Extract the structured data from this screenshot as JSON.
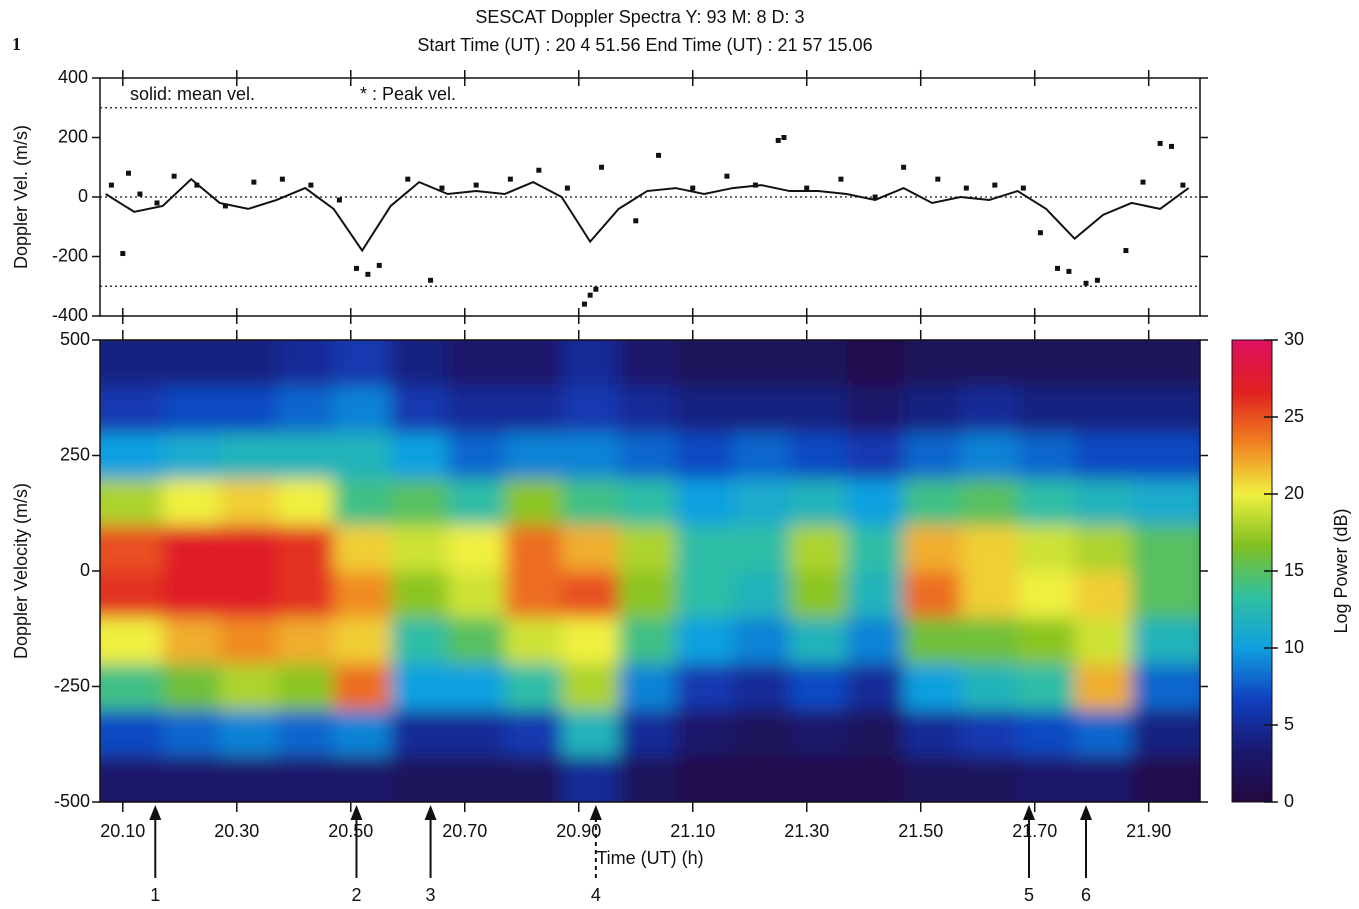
{
  "figure_label": "1",
  "chart_data": [
    {
      "type": "line",
      "title": "SESCAT Doppler Spectra  Y: 93   M: 8   D: 3",
      "subtitle": "Start Time (UT) : 20 4   51.56  End Time (UT) : 21 57   15.06",
      "ylabel": "Doppler Vel. (m/s)",
      "xlim": [
        20.06,
        21.99
      ],
      "xticks": [
        20.1,
        20.3,
        20.5,
        20.7,
        20.9,
        21.1,
        21.3,
        21.5,
        21.7,
        21.9
      ],
      "ylim": [
        -400,
        400
      ],
      "yticks": [
        -400,
        -200,
        0,
        200,
        400
      ],
      "reference_lines": [
        300,
        0,
        -300
      ],
      "series": [
        {
          "name": "solid: mean vel.",
          "style": "line",
          "color": "#111111",
          "x": [
            20.07,
            20.12,
            20.17,
            20.22,
            20.27,
            20.32,
            20.37,
            20.42,
            20.47,
            20.52,
            20.57,
            20.62,
            20.67,
            20.72,
            20.77,
            20.82,
            20.87,
            20.92,
            20.97,
            21.02,
            21.07,
            21.12,
            21.17,
            21.22,
            21.27,
            21.32,
            21.37,
            21.42,
            21.47,
            21.52,
            21.57,
            21.62,
            21.67,
            21.72,
            21.77,
            21.82,
            21.87,
            21.92,
            21.97
          ],
          "values": [
            10,
            -50,
            -30,
            60,
            -20,
            -40,
            -10,
            30,
            -40,
            -180,
            -30,
            50,
            10,
            20,
            10,
            50,
            0,
            -150,
            -40,
            20,
            30,
            10,
            30,
            40,
            20,
            20,
            10,
            -10,
            30,
            -20,
            0,
            -10,
            20,
            -40,
            -140,
            -60,
            -20,
            -40,
            30
          ]
        },
        {
          "name": "* : Peak vel.",
          "style": "points",
          "color": "#111111",
          "x": [
            20.08,
            20.1,
            20.11,
            20.13,
            20.16,
            20.19,
            20.23,
            20.28,
            20.33,
            20.38,
            20.43,
            20.48,
            20.51,
            20.53,
            20.55,
            20.6,
            20.64,
            20.66,
            20.72,
            20.78,
            20.83,
            20.88,
            20.91,
            20.92,
            20.93,
            20.94,
            21.0,
            21.04,
            21.1,
            21.16,
            21.21,
            21.25,
            21.26,
            21.3,
            21.36,
            21.42,
            21.47,
            21.53,
            21.58,
            21.63,
            21.68,
            21.71,
            21.74,
            21.76,
            21.79,
            21.81,
            21.86,
            21.89,
            21.92,
            21.94,
            21.96
          ],
          "values": [
            40,
            -190,
            80,
            10,
            -20,
            70,
            40,
            -30,
            50,
            60,
            40,
            -10,
            -240,
            -260,
            -230,
            60,
            -280,
            30,
            40,
            60,
            90,
            30,
            -360,
            -330,
            -310,
            100,
            -80,
            140,
            30,
            70,
            40,
            190,
            200,
            30,
            60,
            0,
            100,
            60,
            30,
            40,
            30,
            -120,
            -240,
            -250,
            -290,
            -280,
            -180,
            50,
            180,
            170,
            40
          ]
        }
      ]
    },
    {
      "type": "heatmap",
      "xlabel": "Time (UT)  (h)",
      "ylabel": "Doppler Velocity (m/s)",
      "xlim": [
        20.06,
        21.99
      ],
      "xticks": [
        {
          "value": 20.1,
          "label": "20.10"
        },
        {
          "value": 20.3,
          "label": "20.30"
        },
        {
          "value": 20.5,
          "label": "20.50"
        },
        {
          "value": 20.7,
          "label": "20.70"
        },
        {
          "value": 20.9,
          "label": "20.90"
        },
        {
          "value": 21.1,
          "label": "21.10"
        },
        {
          "value": 21.3,
          "label": "21.30"
        },
        {
          "value": 21.5,
          "label": "21.50"
        },
        {
          "value": 21.7,
          "label": "21.70"
        },
        {
          "value": 21.9,
          "label": "21.90"
        }
      ],
      "ylim": [
        -500,
        500
      ],
      "yticks": [
        -500,
        -250,
        0,
        250,
        500
      ],
      "xbins": [
        20.07,
        20.17,
        20.27,
        20.37,
        20.47,
        20.57,
        20.67,
        20.77,
        20.87,
        20.97,
        21.07,
        21.17,
        21.27,
        21.37,
        21.47,
        21.57,
        21.67,
        21.77,
        21.87,
        21.97
      ],
      "ybins": [
        -500,
        -400,
        -300,
        -200,
        -100,
        0,
        100,
        200,
        300,
        400,
        500
      ],
      "z": [
        [
          3,
          3,
          3,
          3,
          3,
          2,
          2,
          2,
          5,
          2,
          1,
          1,
          1,
          1,
          2,
          2,
          3,
          3,
          1
        ],
        [
          7,
          8,
          9,
          8,
          9,
          5,
          5,
          6,
          12,
          5,
          3,
          2,
          3,
          2,
          5,
          6,
          7,
          8,
          4
        ],
        [
          14,
          16,
          18,
          17,
          24,
          10,
          10,
          13,
          18,
          9,
          6,
          5,
          7,
          5,
          10,
          12,
          13,
          22,
          8
        ],
        [
          20,
          22,
          23,
          22,
          21,
          13,
          15,
          19,
          20,
          14,
          10,
          9,
          12,
          9,
          16,
          16,
          17,
          19,
          12
        ],
        [
          26,
          27,
          27,
          26,
          23,
          17,
          19,
          24,
          25,
          17,
          13,
          12,
          17,
          12,
          24,
          21,
          20,
          21,
          15
        ],
        [
          25,
          27,
          27,
          26,
          21,
          19,
          20,
          24,
          22,
          18,
          13,
          13,
          18,
          13,
          22,
          21,
          19,
          18,
          15
        ],
        [
          18,
          20,
          21,
          20,
          14,
          15,
          13,
          17,
          14,
          13,
          10,
          11,
          12,
          10,
          14,
          15,
          13,
          12,
          11
        ],
        [
          10,
          11,
          12,
          12,
          12,
          10,
          8,
          9,
          9,
          8,
          7,
          8,
          7,
          6,
          8,
          9,
          8,
          7,
          7
        ],
        [
          6,
          7,
          7,
          8,
          9,
          6,
          5,
          5,
          6,
          5,
          4,
          4,
          4,
          3,
          4,
          5,
          4,
          4,
          4
        ],
        [
          4,
          4,
          4,
          5,
          6,
          4,
          3,
          3,
          5,
          3,
          2,
          2,
          2,
          1,
          2,
          2,
          2,
          2,
          2
        ]
      ],
      "zlim": [
        0,
        30
      ],
      "zticks": [
        0,
        5,
        10,
        15,
        20,
        25,
        30
      ],
      "colorbar_label": "Log Power (dB)",
      "colorscale": [
        "#24083e",
        "#1a1870",
        "#1040c0",
        "#10a0e0",
        "#30c0a0",
        "#80c020",
        "#f0f040",
        "#f08020",
        "#e02020",
        "#e01060"
      ],
      "annotations": [
        {
          "x": 20.157,
          "label": "1",
          "style": "solid"
        },
        {
          "x": 20.51,
          "label": "2",
          "style": "solid"
        },
        {
          "x": 20.64,
          "label": "3",
          "style": "solid"
        },
        {
          "x": 20.93,
          "label": "4",
          "style": "dashed"
        },
        {
          "x": 21.69,
          "label": "5",
          "style": "solid"
        },
        {
          "x": 21.79,
          "label": "6",
          "style": "solid"
        }
      ]
    }
  ]
}
